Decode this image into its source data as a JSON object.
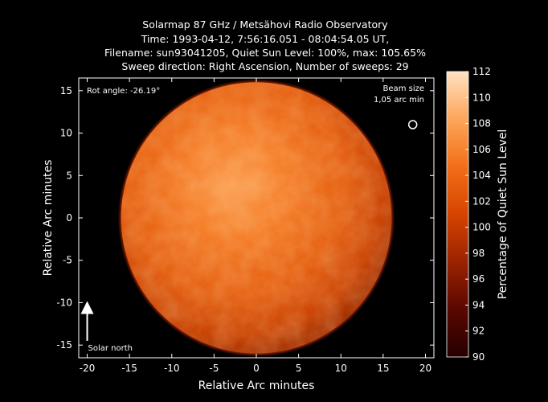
{
  "chart_data": {
    "type": "heatmap",
    "title": [
      "Solarmap 87 GHz / Metsähovi Radio Observatory",
      "Time: 1993-04-12,  7:56:16.051 - 08:04:54.05 UT,",
      "Filename: sun93041205, Quiet Sun Level: 100%, max: 105.65%",
      "Sweep direction: Right Ascension, Number of sweeps: 29"
    ],
    "xlabel": "Relative Arc minutes",
    "ylabel": "Relative Arc minutes",
    "xlim": [
      -21,
      21
    ],
    "ylim": [
      -16.5,
      16.5
    ],
    "xticks": [
      -20,
      -15,
      -10,
      -5,
      0,
      5,
      10,
      15,
      20
    ],
    "yticks": [
      -15,
      -10,
      -5,
      0,
      5,
      10,
      15
    ],
    "colorbar": {
      "label": "Percentage of Quiet Sun Level",
      "min": 90,
      "max": 112,
      "ticks": [
        90,
        92,
        94,
        96,
        98,
        100,
        102,
        104,
        106,
        108,
        110,
        112
      ],
      "colors": [
        "#240000",
        "#5a0700",
        "#9a2300",
        "#d64400",
        "#f36e18",
        "#fca65a",
        "#ffe0c0"
      ]
    },
    "disk": {
      "center": [
        0,
        0
      ],
      "radius_arcmin": 16.0,
      "level_percent": 100,
      "max_percent": 105.65
    },
    "annotations": {
      "rot_angle": "Rot angle: -26.19°",
      "beam_size": [
        "Beam size",
        "1,05 arc min"
      ],
      "beam_position": [
        18.5,
        11.0
      ],
      "solar_north": "Solar north",
      "solar_north_arrow_from": [
        -20,
        -14.5
      ],
      "solar_north_arrow_to": [
        -20,
        -10
      ]
    },
    "grid": false,
    "legend": "colorbar-right"
  }
}
